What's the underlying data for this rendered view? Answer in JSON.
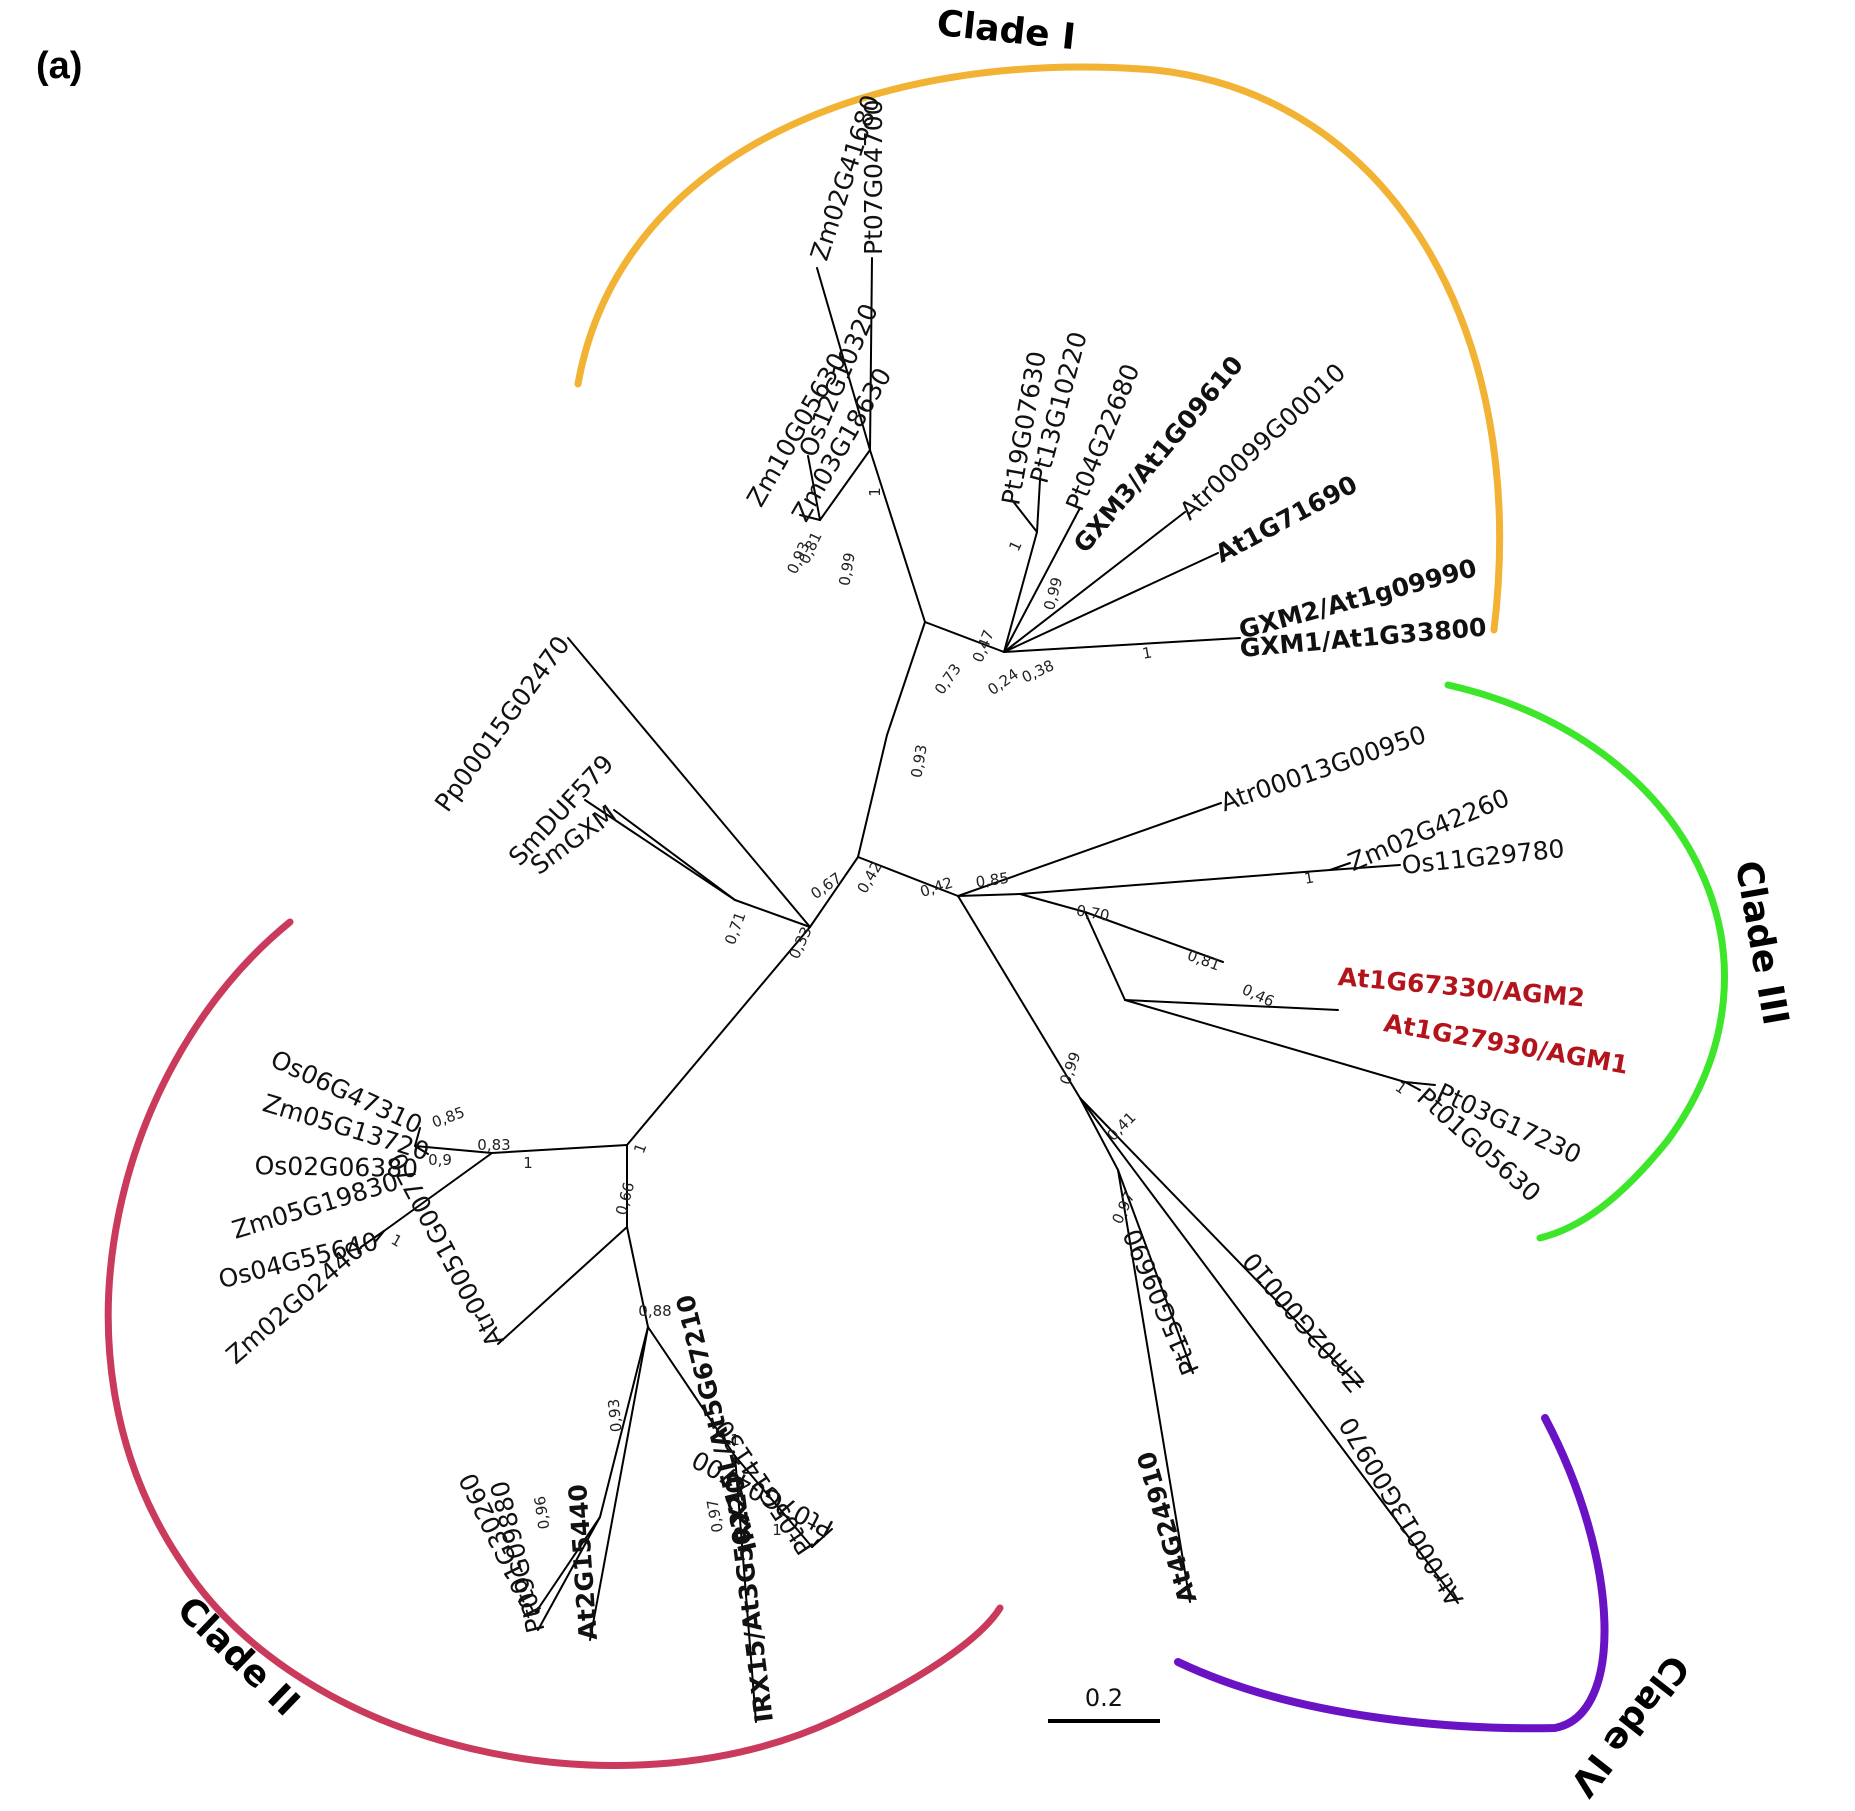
{
  "panel_label": "(a)",
  "scale_bar_label": "0.2",
  "clades": [
    {
      "label": "Clade I",
      "color": "#f2b233"
    },
    {
      "label": "Clade II",
      "color": "#c93a5c"
    },
    {
      "label": "Clade III",
      "color": "#3ee62b"
    },
    {
      "label": "Clade IV",
      "color": "#6a13c4"
    }
  ],
  "leaves": [
    {
      "label": "Pt07G04700",
      "style": "normal"
    },
    {
      "label": "Zm02G41680",
      "style": "normal"
    },
    {
      "label": "Zm03G18630",
      "style": "normal"
    },
    {
      "label": "Os12G10320",
      "style": "normal"
    },
    {
      "label": "Zm10G05630",
      "style": "normal"
    },
    {
      "label": "Pt19G07630",
      "style": "normal"
    },
    {
      "label": "Pt13G10220",
      "style": "normal"
    },
    {
      "label": "Pt04G22680",
      "style": "normal"
    },
    {
      "label": "GXM3/At1G09610",
      "style": "bold"
    },
    {
      "label": "Atr00099G00010",
      "style": "normal"
    },
    {
      "label": "At1G71690",
      "style": "bold"
    },
    {
      "label": "GXM2/At1g09990",
      "style": "bold"
    },
    {
      "label": "GXM1/At1G33800",
      "style": "bold"
    },
    {
      "label": "Pp00015G02470",
      "style": "normal"
    },
    {
      "label": "SmDUF579",
      "style": "normal"
    },
    {
      "label": "SmGXM",
      "style": "normal"
    },
    {
      "label": "Atr00013G00950",
      "style": "normal"
    },
    {
      "label": "Zm02G42260",
      "style": "normal"
    },
    {
      "label": "Os11G29780",
      "style": "normal"
    },
    {
      "label": "At1G67330/AGM2",
      "style": "red"
    },
    {
      "label": "At1G27930/AGM1",
      "style": "red"
    },
    {
      "label": "Pt03G17230",
      "style": "normal"
    },
    {
      "label": "Pt01G05630",
      "style": "normal"
    },
    {
      "label": "Os06G47310",
      "style": "normal"
    },
    {
      "label": "Zm05G13720",
      "style": "normal"
    },
    {
      "label": "Os02G06380",
      "style": "normal"
    },
    {
      "label": "Zm05G19830",
      "style": "normal"
    },
    {
      "label": "Os04G55640",
      "style": "normal"
    },
    {
      "label": "Zm02G02440",
      "style": "normal"
    },
    {
      "label": "Atr00051G00770",
      "style": "normal"
    },
    {
      "label": "Pt01G30260",
      "style": "normal"
    },
    {
      "label": "Pt09G09880",
      "style": "normal"
    },
    {
      "label": "At2G15440",
      "style": "bold"
    },
    {
      "label": "IRX15/At3G50220",
      "style": "bold"
    },
    {
      "label": "IRX15L/At5G67210",
      "style": "bold"
    },
    {
      "label": "Pt05G14130",
      "style": "normal"
    },
    {
      "label": "Pt07G04700",
      "style": "normal"
    },
    {
      "label": "At4G24910",
      "style": "bold"
    },
    {
      "label": "Pt15G09690",
      "style": "normal"
    },
    {
      "label": "Zm02G00010",
      "style": "normal"
    },
    {
      "label": "Atr00013G00970",
      "style": "normal"
    }
  ],
  "support_values": [
    "1",
    "0,99",
    "0,93",
    "0,81",
    "1",
    "0,47",
    "0,73",
    "0,99",
    "0,24",
    "0,38",
    "1",
    "0,93",
    "0,67",
    "0,42",
    "0,33",
    "0,71",
    "0,42",
    "0,85",
    "1",
    "0,70",
    "0,81",
    "0,46",
    "1",
    "0,85",
    "0,83",
    "0,9",
    "1",
    "1",
    "1",
    "0,66",
    "0,88",
    "0,93",
    "0,96",
    "1",
    "1",
    "0,97",
    "0,99",
    "0,41",
    "0,97"
  ]
}
